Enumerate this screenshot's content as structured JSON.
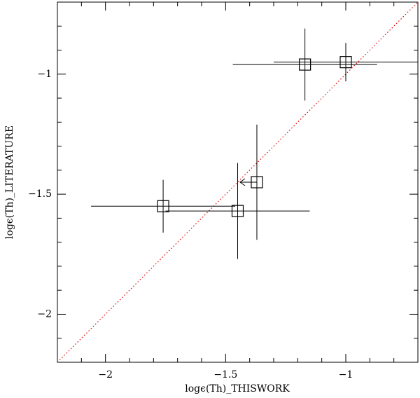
{
  "chart_data": {
    "type": "scatter",
    "xlabel": "logϵ(Th)_THISWORK",
    "ylabel": "logϵ(Th)_LITERATURE",
    "xlim": [
      -2.2,
      -0.7
    ],
    "ylim": [
      -2.2,
      -0.7
    ],
    "xticks": [
      {
        "value": -2,
        "label": "−2"
      },
      {
        "value": -1.5,
        "label": "−1.5"
      },
      {
        "value": -1,
        "label": "−1"
      }
    ],
    "yticks": [
      {
        "value": -2,
        "label": "−2"
      },
      {
        "value": -1.5,
        "label": "−1.5"
      },
      {
        "value": -1,
        "label": "−1"
      }
    ],
    "minor_xticks": [
      -2.1,
      -1.9,
      -1.8,
      -1.7,
      -1.6,
      -1.4,
      -1.3,
      -1.2,
      -1.1,
      -0.9,
      -0.8
    ],
    "minor_yticks": [
      -2.1,
      -1.9,
      -1.8,
      -1.7,
      -1.6,
      -1.4,
      -1.3,
      -1.2,
      -1.1,
      -0.9,
      -0.8
    ],
    "identity_line": true,
    "identity_color": "#e00000",
    "series": [
      {
        "color": "#000000",
        "x": [
          -1.17,
          -1.0,
          -1.37,
          -1.76,
          -1.45
        ],
        "values": [
          -0.96,
          -0.95,
          -1.45,
          -1.55,
          -1.57
        ],
        "xerr": [
          0.3,
          0.3,
          null,
          0.3,
          0.3
        ],
        "yerr": [
          0.15,
          0.08,
          0.24,
          0.11,
          0.2
        ],
        "x_upper_limit": [
          false,
          false,
          true,
          false,
          false
        ]
      }
    ]
  }
}
